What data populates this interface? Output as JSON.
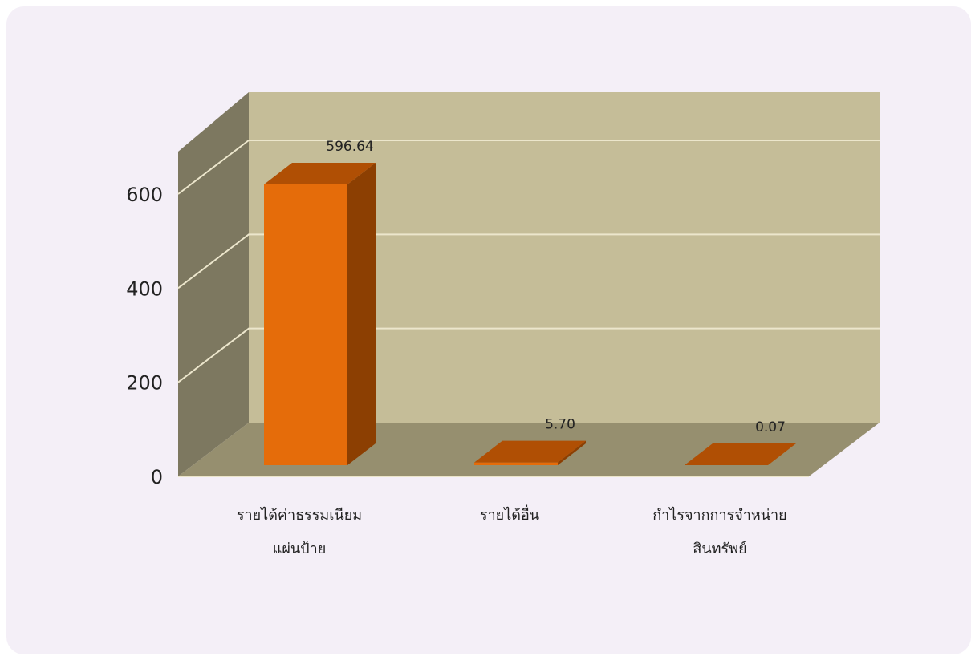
{
  "chart_data": {
    "type": "bar",
    "title": "",
    "xlabel": "",
    "ylabel": "",
    "categories": [
      [
        "รายได้ค่าธรรมเนียม",
        "แผ่นป้าย"
      ],
      [
        "รายได้อื่น"
      ],
      [
        "กำไรจากการจำหน่าย",
        "สินทรัพย์"
      ]
    ],
    "values": [
      596.64,
      5.7,
      0.07
    ],
    "data_labels": [
      "596.64",
      "5.70",
      "0.07"
    ],
    "y_ticks": [
      "0",
      "200",
      "400",
      "600"
    ],
    "ylim": [
      0,
      600
    ],
    "grid": true,
    "three_d": true,
    "colors": {
      "bar_front": "#e56c0a",
      "bar_top": "#b04f04",
      "bar_side": "#8c3f02",
      "back_wall": "#c5bd98",
      "side_wall": "#7d7860",
      "floor": "#968f6f",
      "grid": "#ece6cc"
    }
  }
}
